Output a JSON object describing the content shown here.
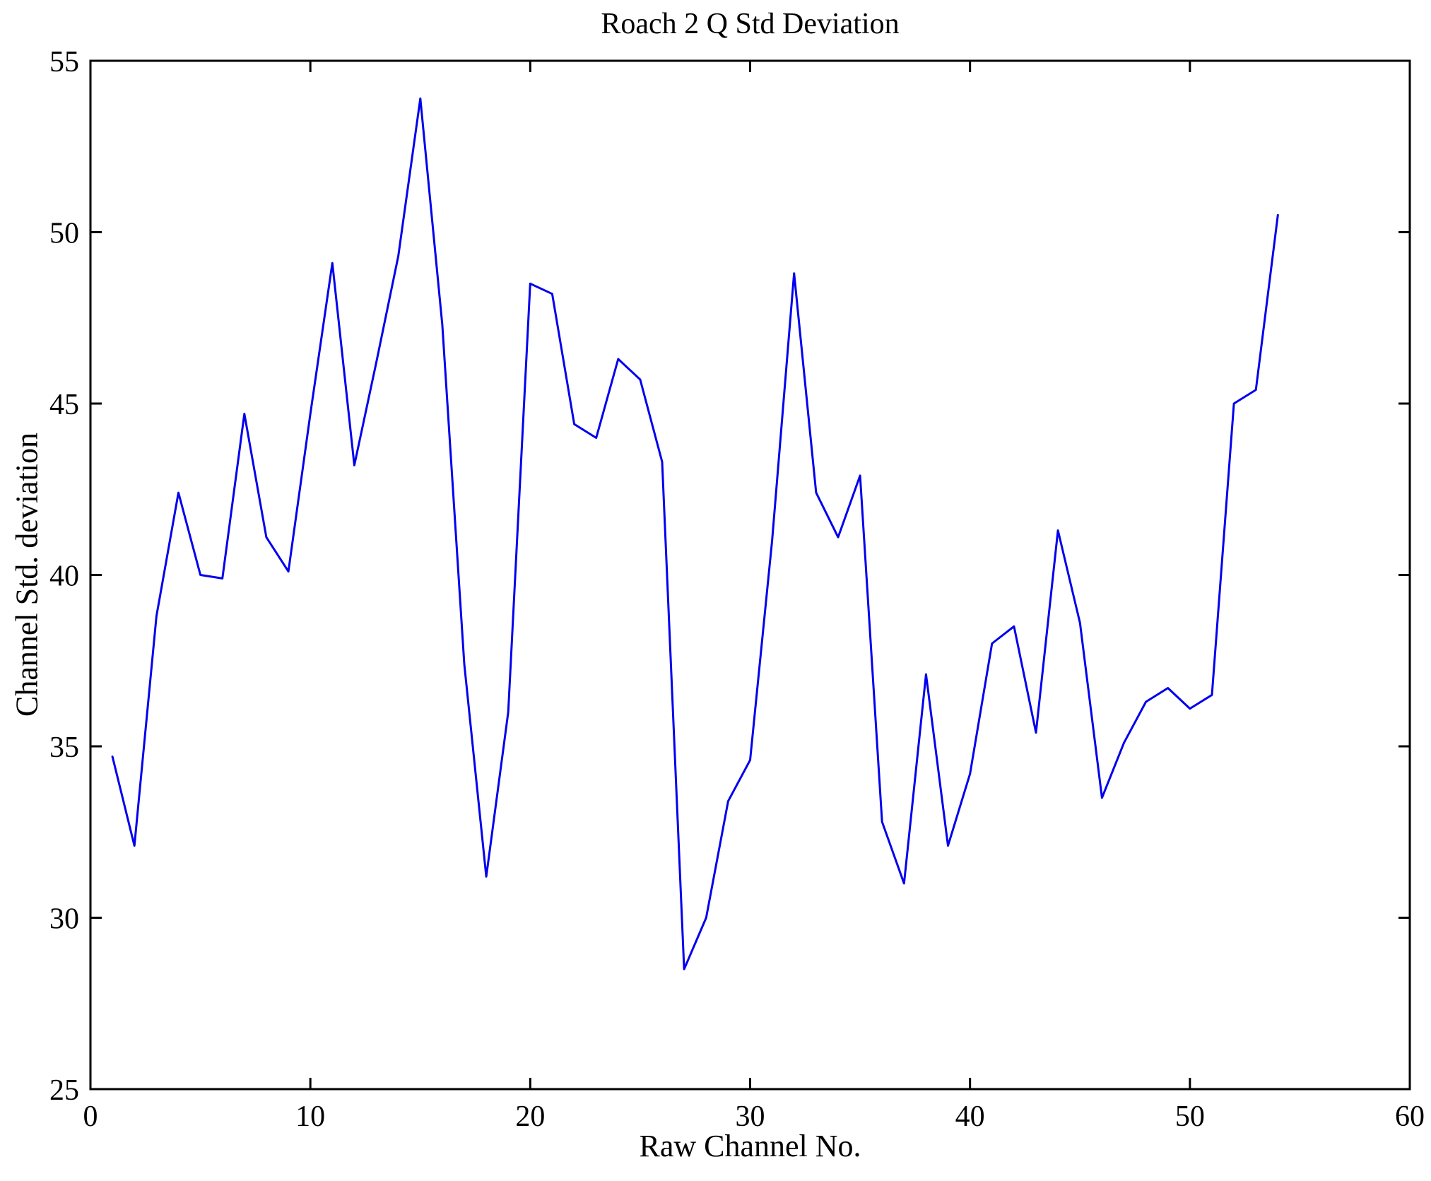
{
  "figure": {
    "title": "Roach 2 Q Std Deviation",
    "xlabel": "Raw Channel No.",
    "ylabel": "Channel Std. deviation"
  },
  "chart_data": {
    "type": "line",
    "title": "Roach 2 Q Std Deviation",
    "xlabel": "Raw Channel No.",
    "ylabel": "Channel Std. deviation",
    "xlim": [
      0,
      60
    ],
    "ylim": [
      25,
      55
    ],
    "x_ticks": [
      0,
      10,
      20,
      30,
      40,
      50,
      60
    ],
    "y_ticks": [
      25,
      30,
      35,
      40,
      45,
      50,
      55
    ],
    "grid": false,
    "legend": "none",
    "line_color": "#0000EE",
    "axis_color": "#000000",
    "background_color": "#FFFFFF",
    "x": [
      1,
      2,
      3,
      4,
      5,
      6,
      7,
      8,
      9,
      10,
      11,
      12,
      13,
      14,
      15,
      16,
      17,
      18,
      19,
      20,
      21,
      22,
      23,
      24,
      25,
      26,
      27,
      28,
      29,
      30,
      31,
      32,
      33,
      34,
      35,
      36,
      37,
      38,
      39,
      40,
      41,
      42,
      43,
      44,
      45,
      46,
      47,
      48,
      49,
      50,
      51,
      52,
      53,
      54
    ],
    "y": [
      34.7,
      32.1,
      38.8,
      42.4,
      40.0,
      39.9,
      44.7,
      41.1,
      40.1,
      44.7,
      49.1,
      43.2,
      46.2,
      49.3,
      53.9,
      47.3,
      37.4,
      31.2,
      36.0,
      48.5,
      48.2,
      44.4,
      44.0,
      46.3,
      45.7,
      43.3,
      28.5,
      30.0,
      33.4,
      34.6,
      41.0,
      48.8,
      42.4,
      41.1,
      42.9,
      32.8,
      31.0,
      37.1,
      32.1,
      34.2,
      38.0,
      38.5,
      35.4,
      41.3,
      38.6,
      33.5,
      35.1,
      36.3,
      36.7,
      36.1,
      36.5,
      45.0,
      45.4,
      50.5
    ]
  }
}
